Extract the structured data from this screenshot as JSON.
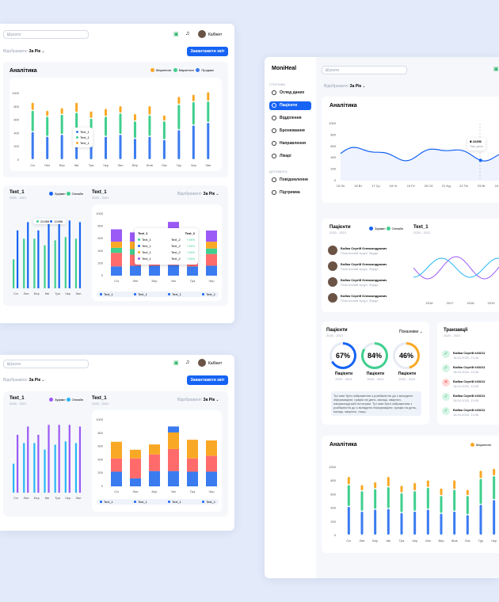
{
  "colors": {
    "blue": "#3a7bf0",
    "green": "#3fcf8e",
    "orange": "#f9a825",
    "purple": "#9b59f5",
    "red": "#ff6b6b",
    "accent": "#1663f4"
  },
  "common": {
    "search_placeholder": "Шукати",
    "period_label": "Відображати:",
    "period_value": "За Рік",
    "report_button": "Завантажити звіт",
    "user_name": "Кабінет"
  },
  "card1": {
    "analytics_title": "Аналітика",
    "legend": [
      "Маркетинг",
      "Маркетинг",
      "Продажі"
    ],
    "text1_title": "Text_1",
    "text1_sub": "2020 - 2021",
    "legend2": [
      "Зуфмін",
      "Онлайн"
    ],
    "text2_title": "Text_1",
    "text2_sub": "2020 - 2021",
    "tooltip": [
      "Text_1",
      "Text_1",
      "Text_1"
    ],
    "table_tip": {
      "header": [
        "Text_1",
        "Text_2"
      ],
      "rows": [
        [
          "Text_1",
          "Text_2",
          "+15%"
        ],
        [
          "Text_1",
          "Text_2",
          "+15%"
        ],
        [
          "Text_1",
          "Text_2",
          "+15%"
        ],
        [
          "Text_1",
          "Text_2",
          "+15%"
        ]
      ]
    },
    "mini_tip": [
      "22456",
      "12456"
    ],
    "footer_tags": [
      "Text_1",
      "Text_1",
      "Text_1",
      "Text_1"
    ]
  },
  "card2": {
    "text1_title": "Text_1",
    "text1_sub": "2020 - 2021",
    "legend2": [
      "Зуфмін",
      "Онлайн"
    ],
    "text2_title": "Text_1",
    "text2_sub": "2020 - 2021",
    "footer_tags": [
      "Text_1",
      "Text_1",
      "Text_1",
      "Text_1"
    ]
  },
  "card3": {
    "brand": "MoniHeal",
    "pages_label": "СТОРІНКИ",
    "nav": [
      "Огляд даних",
      "Пацієнти",
      "Відділення",
      "Бронювання",
      "Направлення",
      "Лікарі"
    ],
    "extra_label": "ДОПОМОГА",
    "nav2": [
      "Повідомлення",
      "Підтримка"
    ],
    "analytics_title": "Аналітика",
    "line_tip": [
      "₴ 22456",
      "Ліки день"
    ],
    "patients_title": "Пацієнти",
    "patients_sub": "2020 - 2021",
    "patients_legend": [
      "Зуфмін",
      "Онлайн"
    ],
    "patients": [
      {
        "name": "Бойко Сергій Олександрович",
        "role": "Пластичний хірург, Фурдо"
      },
      {
        "name": "Бойко Сергій Олександрович",
        "role": "Пластичний хірург, Фурдо"
      },
      {
        "name": "Бойко Сергій Олександрович",
        "role": "Пластичний хірург, Фурдо"
      },
      {
        "name": "Бойко Сергій Олександрович",
        "role": "Пластичний хірург, Фурдо"
      }
    ],
    "text1_title": "Text_1",
    "text1_sub": "2020 - 2021",
    "wave_years": [
      "2016",
      "2017",
      "2018",
      "2019"
    ],
    "rings_title": "Пацієнти",
    "rings_sub": "2020 - 2021",
    "rings_period": "Показники",
    "rings": [
      {
        "value": "67%",
        "label": "Пацієнти",
        "sub": "2020 - 2021"
      },
      {
        "value": "84%",
        "label": "Пацієнти",
        "sub": "2020 - 2021"
      },
      {
        "value": "46%",
        "label": "Пацієнти",
        "sub": "2020 - 2021"
      }
    ],
    "note": "Тут мае бути зображення з розбіжністю до з вкладено інформацією: графік на день, місяць, квартал, наприкладі-міні гістограм. Тут мае бути зображення з розбіжністю до з вкладено інформацією: графік на день, місяць, квартал, тощо.",
    "tx_title": "Транзакції",
    "tx_sub": "2020 - 2021",
    "tx": [
      {
        "name": "Бойко Сергій #43211",
        "date": "18.04.2020, 13:45",
        "status": "ok"
      },
      {
        "name": "Бойко Сергій #43211",
        "date": "18.04.2020, 13:45",
        "status": "ok"
      },
      {
        "name": "Бойко Сергій #43211",
        "date": "18.04.2020, 13:45",
        "status": "fail"
      },
      {
        "name": "Бойко Сергій #43211",
        "date": "18.04.2020, 13:45",
        "status": "ok"
      },
      {
        "name": "Бойко Сергій #43211",
        "date": "18.04.2020, 13:45",
        "status": "ok"
      }
    ],
    "analytics2_title": "Аналітика",
    "analytics2_legend": [
      "Маркетинг"
    ]
  },
  "chart_data": [
    {
      "type": "bar",
      "title": "Аналітика",
      "categories": [
        "Січ",
        "Лют",
        "Бер",
        "Кві",
        "Тра",
        "Чер",
        "Лип",
        "Вер",
        "Жов",
        "Лис",
        "Гру",
        "Чер",
        "Лип"
      ],
      "ylim": [
        0,
        1000
      ],
      "yticks": [
        "1000",
        "800",
        "600",
        "400",
        "200",
        "0"
      ],
      "series": [
        {
          "name": "Продажі",
          "values": [
            420,
            350,
            380,
            390,
            330,
            350,
            380,
            320,
            350,
            300,
            450,
            520,
            560
          ]
        },
        {
          "name": "Маркетинг",
          "values": [
            320,
            300,
            300,
            320,
            290,
            300,
            320,
            260,
            320,
            280,
            380,
            350,
            320
          ]
        },
        {
          "name": "Маркетинг",
          "values": [
            120,
            90,
            100,
            150,
            110,
            120,
            110,
            110,
            140,
            90,
            120,
            110,
            140
          ]
        }
      ]
    },
    {
      "type": "bar",
      "title": "Text_1",
      "categories": [
        "Січ",
        "Лют",
        "Бер",
        "Кві",
        "Тра",
        "Чер",
        "Лип"
      ],
      "series": [
        {
          "name": "Зуфмін",
          "values": [
            70,
            80,
            70,
            82,
            82,
            82,
            80
          ]
        },
        {
          "name": "Онлайн",
          "values": [
            35,
            60,
            60,
            52,
            58,
            62,
            60
          ]
        }
      ]
    },
    {
      "type": "bar",
      "title": "Text_1",
      "categories": [
        "Січ",
        "Лют",
        "Бер",
        "Кві",
        "Тра",
        "Чер"
      ],
      "ylim": [
        0,
        1000
      ],
      "yticks": [
        "1000",
        "800",
        "600",
        "400",
        "200",
        "0"
      ]
    },
    {
      "type": "line",
      "title": "Аналітика",
      "categories": [
        "15 Пн",
        "16 Вт",
        "17 Ср",
        "18 Чт",
        "19 Пт",
        "20 Сб",
        "21 Нд",
        "22 Пн",
        "23 Вт",
        "24 Ср"
      ],
      "yticks": [
        "1000",
        "800",
        "600",
        "400",
        "200",
        "0"
      ],
      "values": [
        400,
        480,
        450,
        540,
        430,
        580,
        500,
        440,
        550,
        560
      ]
    }
  ]
}
